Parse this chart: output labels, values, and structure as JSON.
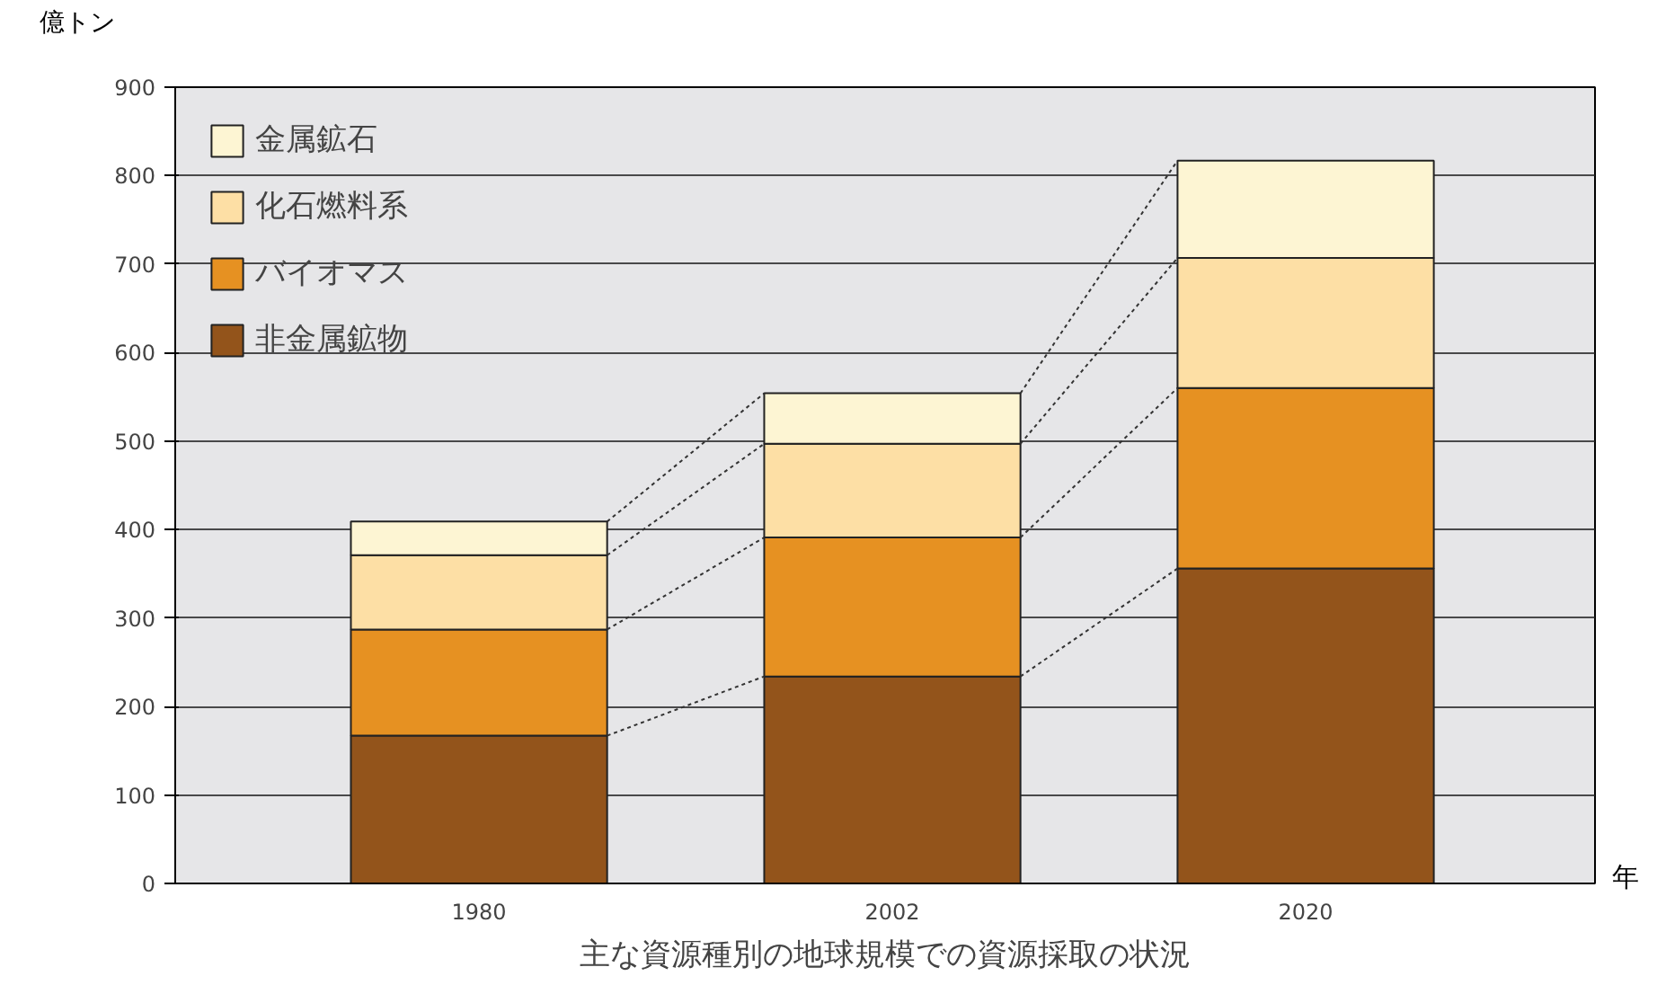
{
  "chart_data": {
    "type": "bar",
    "stacked": true,
    "title": "主な資源種別の地球規模での資源採取の状況",
    "ylabel": "億トン",
    "xlabel": "年",
    "categories": [
      "1980",
      "2002",
      "2020"
    ],
    "series": [
      {
        "name": "非金属鉱物",
        "color": "#93541b",
        "values": [
          167,
          234,
          356
        ]
      },
      {
        "name": "バイオマス",
        "color": "#e69122",
        "values": [
          120,
          157,
          204
        ]
      },
      {
        "name": "化石燃料系",
        "color": "#fddfa5",
        "values": [
          84,
          106,
          147
        ]
      },
      {
        "name": "金属鉱石",
        "color": "#fdf5d3",
        "values": [
          38,
          57,
          110
        ]
      }
    ],
    "ylim": [
      0,
      900
    ],
    "yticks": [
      0,
      100,
      200,
      300,
      400,
      500,
      600,
      700,
      800,
      900
    ],
    "grid": "y",
    "legend": "top left"
  }
}
